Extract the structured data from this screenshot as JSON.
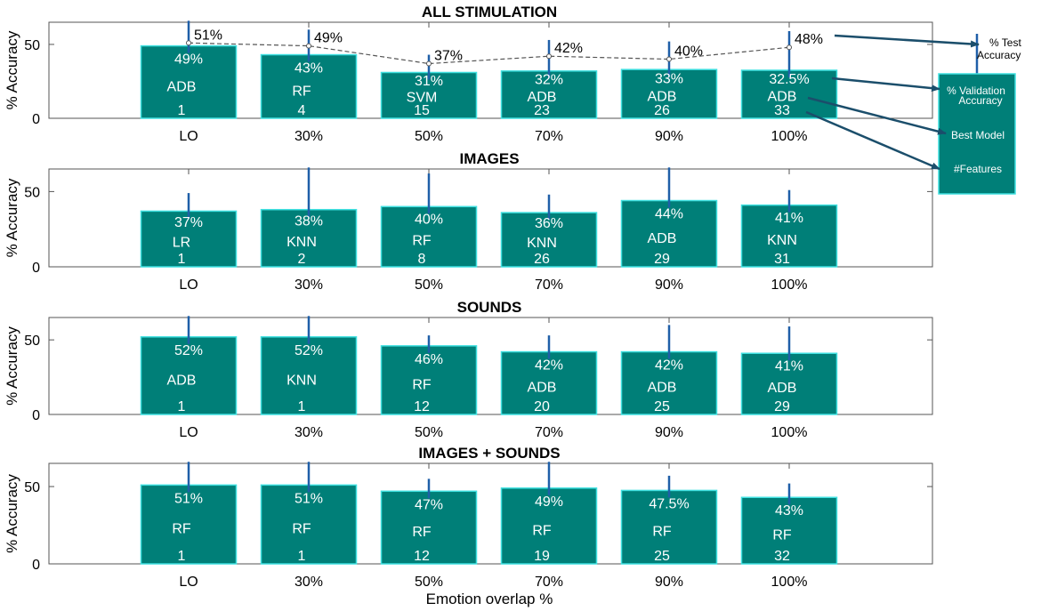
{
  "colors": {
    "bar": "#007f78",
    "bar_edge": "#3ee0e0",
    "error": "#1f5fa8",
    "line": "#555555",
    "arrow": "#1b4e6b"
  },
  "legend": {
    "test": "% Test Accuracy",
    "test_lines": [
      "% Test",
      "Accuracy"
    ],
    "validation_lines": [
      "% Validation",
      "Accuracy"
    ],
    "best_model": "Best Model",
    "features": "#Features"
  },
  "xlabel": "Emotion overlap %",
  "chart_data": [
    {
      "type": "bar",
      "title": "ALL STIMULATION",
      "ylabel": "% Accuracy",
      "ylim": [
        0,
        65
      ],
      "yticks": [
        0,
        50
      ],
      "categories": [
        "LO",
        "30%",
        "50%",
        "70%",
        "90%",
        "100%"
      ],
      "validation": [
        49,
        43,
        31,
        32,
        33,
        32.5
      ],
      "validation_labels": [
        "49%",
        "43%",
        "31%",
        "32%",
        "33%",
        "32.5%"
      ],
      "models": [
        "ADB",
        "RF",
        "SVM",
        "ADB",
        "ADB",
        "ADB"
      ],
      "features": [
        1,
        4,
        15,
        23,
        26,
        33
      ],
      "test": [
        51,
        49,
        37,
        42,
        40,
        48
      ],
      "test_labels": [
        "51%",
        "49%",
        "37%",
        "42%",
        "40%",
        "48%"
      ],
      "error_top": [
        66,
        60,
        43,
        53,
        52,
        59
      ]
    },
    {
      "type": "bar",
      "title": "IMAGES",
      "ylabel": "% Accuracy",
      "ylim": [
        0,
        65
      ],
      "yticks": [
        0,
        50
      ],
      "categories": [
        "LO",
        "30%",
        "50%",
        "70%",
        "90%",
        "100%"
      ],
      "validation": [
        37,
        38,
        40,
        36,
        44,
        41
      ],
      "validation_labels": [
        "37%",
        "38%",
        "40%",
        "36%",
        "44%",
        "41%"
      ],
      "models": [
        "LR",
        "KNN",
        "RF",
        "KNN",
        "ADB",
        "KNN"
      ],
      "features": [
        1,
        2,
        8,
        26,
        29,
        31
      ],
      "error_top": [
        49,
        66,
        62,
        48,
        66,
        51
      ]
    },
    {
      "type": "bar",
      "title": "SOUNDS",
      "ylabel": "% Accuracy",
      "ylim": [
        0,
        65
      ],
      "yticks": [
        0,
        50
      ],
      "categories": [
        "LO",
        "30%",
        "50%",
        "70%",
        "90%",
        "100%"
      ],
      "validation": [
        52,
        52,
        46,
        42,
        42,
        41
      ],
      "validation_labels": [
        "52%",
        "52%",
        "46%",
        "42%",
        "42%",
        "41%"
      ],
      "models": [
        "ADB",
        "KNN",
        "RF",
        "ADB",
        "ADB",
        "ADB"
      ],
      "features": [
        1,
        1,
        12,
        20,
        25,
        29
      ],
      "error_top": [
        66,
        66,
        53,
        53,
        60,
        59
      ]
    },
    {
      "type": "bar",
      "title": "IMAGES + SOUNDS",
      "ylabel": "% Accuracy",
      "ylim": [
        0,
        65
      ],
      "yticks": [
        0,
        50
      ],
      "categories": [
        "LO",
        "30%",
        "50%",
        "70%",
        "90%",
        "100%"
      ],
      "validation": [
        51,
        51,
        47,
        49,
        47.5,
        43
      ],
      "validation_labels": [
        "51%",
        "51%",
        "47%",
        "49%",
        "47.5%",
        "43%"
      ],
      "models": [
        "RF",
        "RF",
        "RF",
        "RF",
        "RF",
        "RF"
      ],
      "features": [
        1,
        1,
        12,
        19,
        25,
        32
      ],
      "error_top": [
        66,
        66,
        55,
        66,
        57,
        52
      ]
    }
  ]
}
